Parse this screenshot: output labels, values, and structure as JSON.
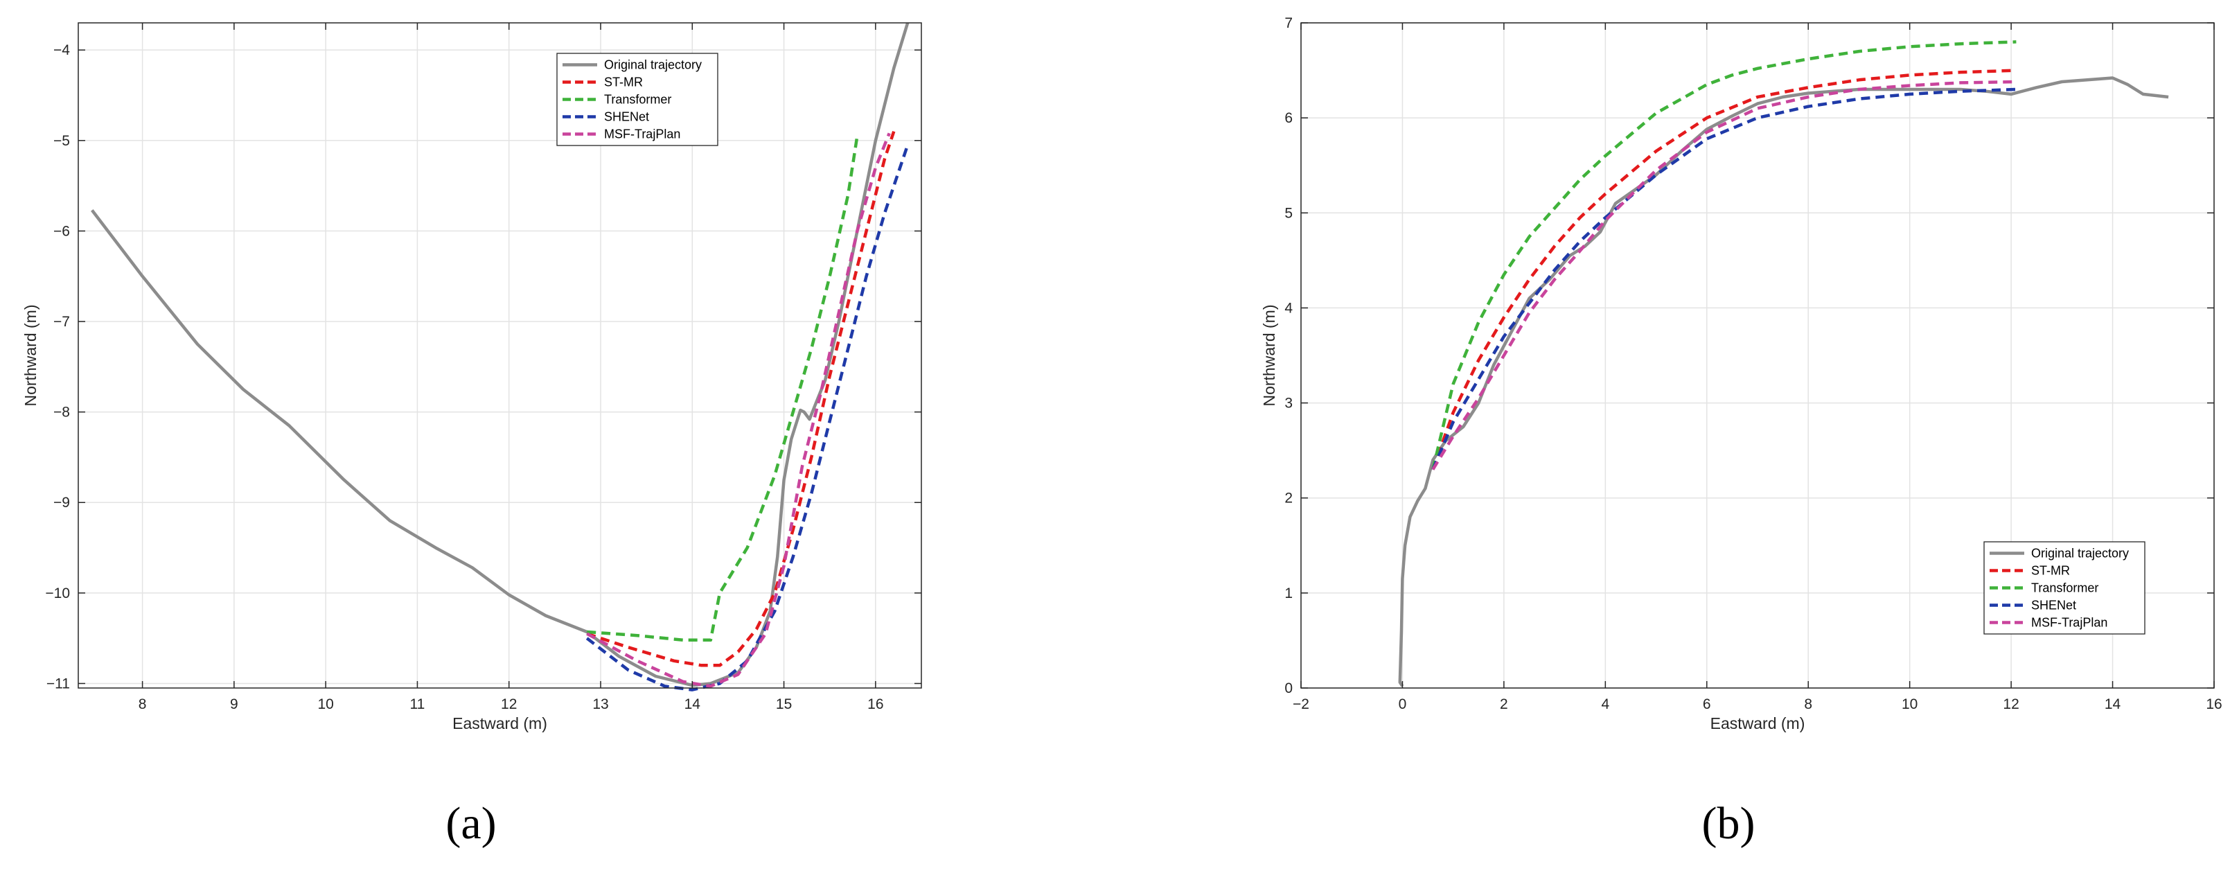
{
  "panels": [
    {
      "caption": "(a)",
      "chart_data": {
        "type": "line",
        "xlabel": "Eastward (m)",
        "ylabel": "Northward (m)",
        "xlim": [
          7.3,
          16.5
        ],
        "ylim": [
          -11.05,
          -3.7
        ],
        "xticks": [
          8,
          9,
          10,
          11,
          12,
          13,
          14,
          15,
          16
        ],
        "yticks": [
          -11,
          -10,
          -9,
          -8,
          -7,
          -6,
          -5,
          -4
        ],
        "grid": true,
        "legend_position": "top-center",
        "series": [
          {
            "name": "Original trajectory",
            "color": "#8c8c8c",
            "dash": "solid",
            "x": [
              7.45,
              8.0,
              8.6,
              9.1,
              9.6,
              10.2,
              10.7,
              11.2,
              11.6,
              12.0,
              12.4,
              12.85,
              13.2,
              13.6,
              14.0,
              14.2,
              14.5,
              14.7,
              14.85,
              14.93,
              15.0,
              15.08,
              15.18,
              15.22,
              15.28,
              15.35,
              15.45,
              15.6,
              15.8,
              16.0,
              16.2,
              16.35
            ],
            "y": [
              -5.77,
              -6.5,
              -7.25,
              -7.75,
              -8.15,
              -8.75,
              -9.2,
              -9.5,
              -9.72,
              -10.02,
              -10.25,
              -10.43,
              -10.7,
              -10.92,
              -11.02,
              -11.0,
              -10.88,
              -10.6,
              -10.2,
              -9.6,
              -8.75,
              -8.3,
              -7.98,
              -8.0,
              -8.08,
              -7.9,
              -7.65,
              -7.0,
              -6.0,
              -5.0,
              -4.2,
              -3.7
            ]
          },
          {
            "name": "ST-MR",
            "color": "#e41a1c",
            "dash": "dashed",
            "x": [
              12.85,
              13.3,
              13.8,
              14.1,
              14.3,
              14.5,
              14.7,
              14.9,
              15.1,
              15.3,
              15.5,
              15.7,
              15.9,
              16.1,
              16.2
            ],
            "y": [
              -10.45,
              -10.6,
              -10.75,
              -10.8,
              -10.8,
              -10.65,
              -10.4,
              -10.0,
              -9.3,
              -8.5,
              -7.6,
              -6.8,
              -6.0,
              -5.2,
              -4.9
            ]
          },
          {
            "name": "Transformer",
            "color": "#3fb23a",
            "dash": "dashed",
            "x": [
              12.85,
              13.4,
              13.9,
              14.2,
              14.3,
              14.6,
              14.9,
              15.1,
              15.3,
              15.5,
              15.7,
              15.8
            ],
            "y": [
              -10.43,
              -10.47,
              -10.52,
              -10.52,
              -10.0,
              -9.5,
              -8.7,
              -8.0,
              -7.3,
              -6.5,
              -5.6,
              -4.95
            ]
          },
          {
            "name": "SHENet",
            "color": "#1f3aa8",
            "dash": "dashed",
            "x": [
              12.85,
              13.3,
              13.7,
              14.0,
              14.3,
              14.6,
              14.9,
              15.1,
              15.3,
              15.5,
              15.7,
              15.9,
              16.1,
              16.35
            ],
            "y": [
              -10.5,
              -10.85,
              -11.03,
              -11.07,
              -11.0,
              -10.75,
              -10.2,
              -9.6,
              -8.9,
              -8.1,
              -7.3,
              -6.5,
              -5.8,
              -5.05
            ]
          },
          {
            "name": "MSF-TrajPlan",
            "color": "#c9449c",
            "dash": "dashed",
            "x": [
              12.85,
              13.4,
              13.9,
              14.2,
              14.5,
              14.8,
              15.0,
              15.2,
              15.4,
              15.6,
              15.8,
              16.0,
              16.15
            ],
            "y": [
              -10.45,
              -10.75,
              -10.98,
              -11.03,
              -10.9,
              -10.45,
              -9.7,
              -8.6,
              -7.8,
              -6.9,
              -6.0,
              -5.3,
              -4.92
            ]
          }
        ]
      }
    },
    {
      "caption": "(b)",
      "chart_data": {
        "type": "line",
        "xlabel": "Eastward (m)",
        "ylabel": "Northward  (m)",
        "xlim": [
          -2,
          16
        ],
        "ylim": [
          0,
          7
        ],
        "xticks": [
          -2,
          0,
          2,
          4,
          6,
          8,
          10,
          12,
          14,
          16
        ],
        "yticks": [
          0,
          1,
          2,
          3,
          4,
          5,
          6,
          7
        ],
        "grid": true,
        "legend_position": "bottom-right",
        "series": [
          {
            "name": "Original trajectory",
            "color": "#8c8c8c",
            "dash": "solid",
            "x": [
              0.0,
              -0.05,
              -0.02,
              0.0,
              0.05,
              0.15,
              0.3,
              0.45,
              0.6,
              0.85,
              1.2,
              1.5,
              1.8,
              2.1,
              2.5,
              2.9,
              3.3,
              3.6,
              3.9,
              4.2,
              4.6,
              5.0,
              5.5,
              6.0,
              6.5,
              7.0,
              7.5,
              8.0,
              8.5,
              9.0,
              9.5,
              10.0,
              10.5,
              11.0,
              11.5,
              12.0,
              12.5,
              13.0,
              13.5,
              14.0,
              14.3,
              14.6,
              15.1
            ],
            "y": [
              0.02,
              0.06,
              0.6,
              1.15,
              1.5,
              1.8,
              1.97,
              2.1,
              2.4,
              2.6,
              2.75,
              3.0,
              3.4,
              3.7,
              4.1,
              4.3,
              4.55,
              4.65,
              4.8,
              5.1,
              5.25,
              5.4,
              5.65,
              5.88,
              6.02,
              6.15,
              6.22,
              6.26,
              6.28,
              6.3,
              6.3,
              6.3,
              6.3,
              6.3,
              6.28,
              6.25,
              6.32,
              6.38,
              6.4,
              6.42,
              6.35,
              6.25,
              6.22
            ]
          },
          {
            "name": "ST-MR",
            "color": "#e41a1c",
            "dash": "dashed",
            "x": [
              0.6,
              1.0,
              1.5,
              2.0,
              2.5,
              3.0,
              3.5,
              4.0,
              5.0,
              6.0,
              7.0,
              8.0,
              9.0,
              10.0,
              11.0,
              12.1
            ],
            "y": [
              2.3,
              2.9,
              3.45,
              3.9,
              4.3,
              4.65,
              4.95,
              5.2,
              5.65,
              6.0,
              6.22,
              6.32,
              6.4,
              6.45,
              6.48,
              6.5
            ]
          },
          {
            "name": "Transformer",
            "color": "#3fb23a",
            "dash": "dashed",
            "x": [
              0.6,
              1.0,
              1.5,
              2.0,
              2.5,
              3.0,
              3.5,
              4.0,
              5.0,
              6.0,
              6.5,
              7.0,
              8.0,
              9.0,
              10.0,
              11.0,
              12.1
            ],
            "y": [
              2.3,
              3.2,
              3.85,
              4.35,
              4.75,
              5.05,
              5.35,
              5.6,
              6.05,
              6.35,
              6.45,
              6.52,
              6.62,
              6.7,
              6.75,
              6.78,
              6.8
            ]
          },
          {
            "name": "SHENet",
            "color": "#1f3aa8",
            "dash": "dashed",
            "x": [
              0.6,
              1.0,
              1.5,
              2.0,
              2.5,
              3.0,
              3.5,
              4.0,
              5.0,
              6.0,
              7.0,
              8.0,
              9.0,
              10.0,
              11.0,
              12.1
            ],
            "y": [
              2.3,
              2.8,
              3.25,
              3.7,
              4.05,
              4.4,
              4.7,
              4.95,
              5.4,
              5.78,
              6.0,
              6.12,
              6.2,
              6.25,
              6.28,
              6.3
            ]
          },
          {
            "name": "MSF-TrajPlan",
            "color": "#c9449c",
            "dash": "dashed",
            "x": [
              0.6,
              1.0,
              1.5,
              2.0,
              2.5,
              3.0,
              3.5,
              4.0,
              5.0,
              6.0,
              7.0,
              8.0,
              9.0,
              10.0,
              11.0,
              12.1
            ],
            "y": [
              2.3,
              2.65,
              3.05,
              3.5,
              3.95,
              4.3,
              4.6,
              4.92,
              5.45,
              5.85,
              6.1,
              6.22,
              6.3,
              6.34,
              6.37,
              6.38
            ]
          }
        ]
      }
    }
  ]
}
